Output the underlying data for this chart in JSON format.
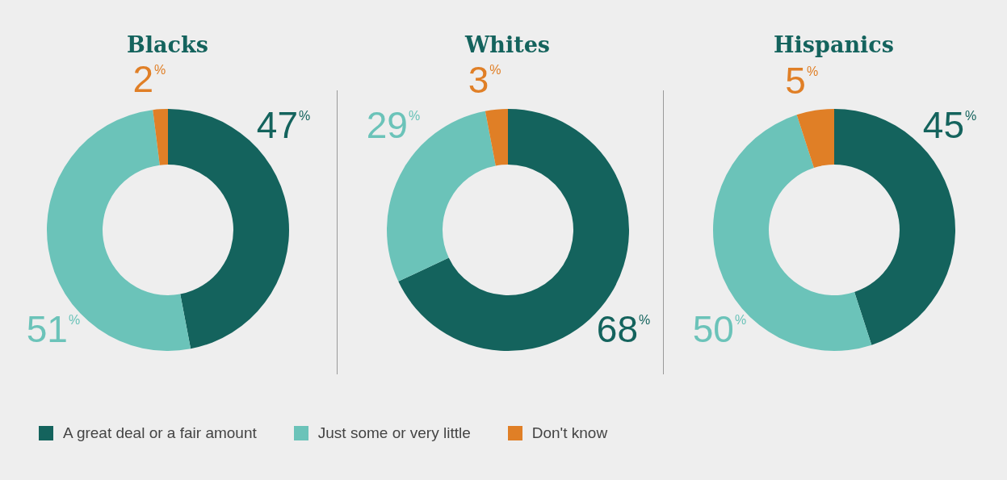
{
  "chart_data": [
    {
      "type": "donut",
      "title": "Blacks",
      "categories": [
        "A great deal or a fair amount",
        "Just some or very little",
        "Don't know"
      ],
      "values": [
        47,
        51,
        2
      ],
      "colors": [
        "#14635d",
        "#6bc3b9",
        "#e07f26"
      ],
      "value_labels": [
        "47%",
        "51%",
        "2%"
      ],
      "legend": "bottom"
    },
    {
      "type": "donut",
      "title": "Whites",
      "values": [
        68,
        29,
        3
      ],
      "colors": [
        "#14635d",
        "#6bc3b9",
        "#e07f26"
      ],
      "value_labels": [
        "68%",
        "29%",
        "3%"
      ]
    },
    {
      "type": "donut",
      "title": "Hispanics",
      "values": [
        45,
        50,
        5
      ],
      "colors": [
        "#14635d",
        "#6bc3b9",
        "#e07f26"
      ],
      "value_labels": [
        "45%",
        "50%",
        "5%"
      ]
    }
  ]
}
